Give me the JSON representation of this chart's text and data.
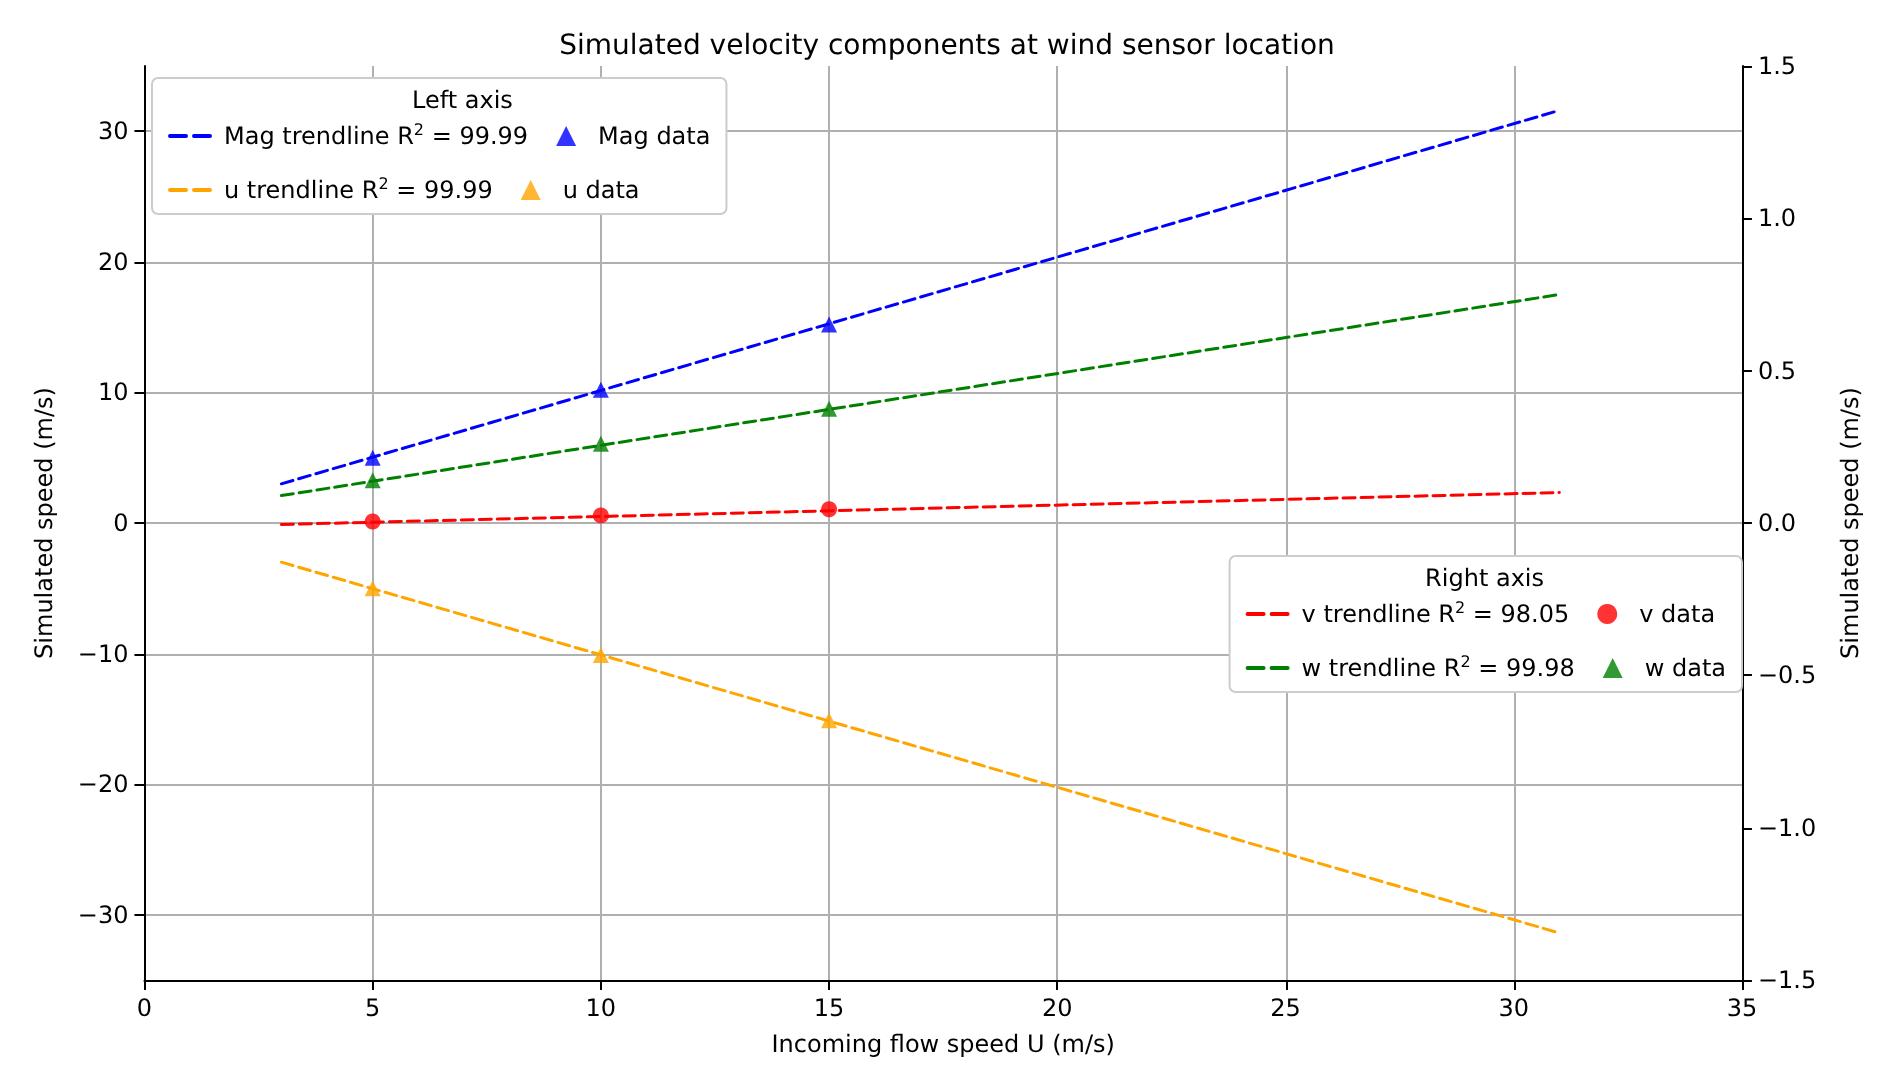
{
  "chart_data": {
    "type": "scatter",
    "title": "Simulated velocity components at wind sensor location",
    "xlabel": "Incoming flow speed U (m/s)",
    "ylabel": "Simulated speed (m/s)",
    "y2label": "Simulated speed (m/s)",
    "legend_title": "Left axis",
    "annotations": [
      "Right axis"
    ],
    "xlim": [
      0,
      35
    ],
    "xticks": [
      0,
      5,
      10,
      15,
      20,
      25,
      30,
      35
    ],
    "ylim": [
      -35,
      35
    ],
    "yticks": [
      -30,
      -20,
      -10,
      0,
      10,
      20,
      30
    ],
    "y2lim": [
      -1.5,
      1.5
    ],
    "y2ticks": [
      -1.5,
      {
        "value": -1,
        "label": "−1.0"
      },
      -0.5,
      {
        "value": 0,
        "label": "0.0"
      },
      0.5,
      {
        "value": 1,
        "label": "1.0"
      },
      1.5
    ],
    "grid": true,
    "legend": "top left",
    "series": [
      {
        "name": "Mag trendline R$^{2}$ = 99.99",
        "type": "line",
        "line_style": "dashed",
        "marker": "none",
        "color": "#0000ff",
        "x": [
          3,
          31
        ],
        "values": [
          3.0,
          31.6
        ]
      },
      {
        "name": "Mag data",
        "type": "scatter",
        "marker": "triangle",
        "color": "#0000ff",
        "x": [
          5,
          10,
          15
        ],
        "values": [
          5.0,
          10.2,
          15.2
        ]
      },
      {
        "name": "u trendline R$^{2}$ = 99.99",
        "type": "line",
        "line_style": "dashed",
        "marker": "none",
        "color": "#ffa500",
        "x": [
          3,
          31
        ],
        "values": [
          -3.0,
          -31.4
        ]
      },
      {
        "name": "u data",
        "type": "scatter",
        "marker": "triangle",
        "color": "#ffa500",
        "x": [
          5,
          10,
          15
        ],
        "values": [
          -5.0,
          -10.1,
          -15.1
        ]
      },
      {
        "name": "v trendline R$^{2}$ = 98.05",
        "type": "line",
        "axis": "y2",
        "line_style": "dashed",
        "marker": "none",
        "color": "#ff0000",
        "x": [
          3,
          31
        ],
        "values": [
          -0.005,
          0.1
        ]
      },
      {
        "name": "v data",
        "type": "scatter",
        "axis": "y2",
        "marker": "circle",
        "color": "#ff0000",
        "x": [
          5,
          10,
          15
        ],
        "values": [
          0.005,
          0.025,
          0.045
        ]
      },
      {
        "name": "w trendline R$^{2}$ = 99.98",
        "type": "line",
        "axis": "y2",
        "line_style": "dashed",
        "marker": "none",
        "color": "#008000",
        "x": [
          3,
          31
        ],
        "values": [
          0.09,
          0.75
        ]
      },
      {
        "name": "w data",
        "type": "scatter",
        "axis": "y2",
        "marker": "triangle",
        "color": "#008000",
        "x": [
          5,
          10,
          15
        ],
        "values": [
          0.14,
          0.26,
          0.375
        ]
      }
    ]
  }
}
